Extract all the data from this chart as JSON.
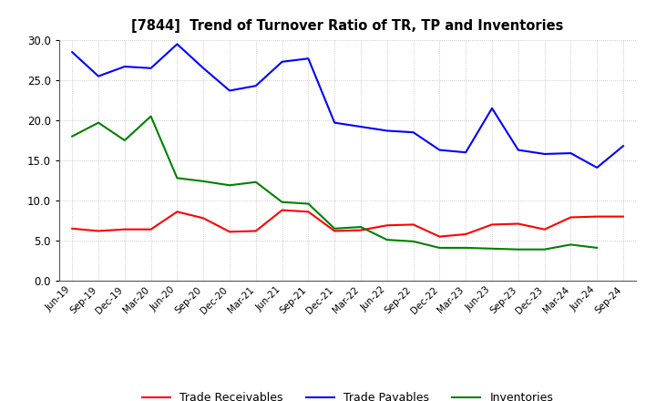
{
  "title": "[7844]  Trend of Turnover Ratio of TR, TP and Inventories",
  "x_labels": [
    "Jun-19",
    "Sep-19",
    "Dec-19",
    "Mar-20",
    "Jun-20",
    "Sep-20",
    "Dec-20",
    "Mar-21",
    "Jun-21",
    "Sep-21",
    "Dec-21",
    "Mar-22",
    "Jun-22",
    "Sep-22",
    "Dec-22",
    "Mar-23",
    "Jun-23",
    "Sep-23",
    "Dec-23",
    "Mar-24",
    "Jun-24",
    "Sep-24"
  ],
  "trade_receivables": [
    6.5,
    6.2,
    6.4,
    6.4,
    8.6,
    7.8,
    6.1,
    6.2,
    8.8,
    8.6,
    6.2,
    6.3,
    6.9,
    7.0,
    5.5,
    5.8,
    7.0,
    7.1,
    6.4,
    7.9,
    8.0,
    8.0
  ],
  "trade_payables": [
    28.5,
    25.5,
    26.7,
    26.5,
    29.5,
    26.5,
    23.7,
    24.3,
    27.3,
    27.7,
    19.7,
    19.2,
    18.7,
    18.5,
    16.3,
    16.0,
    21.5,
    16.3,
    15.8,
    15.9,
    14.1,
    16.8
  ],
  "inventories": [
    18.0,
    19.7,
    17.5,
    20.5,
    12.8,
    12.4,
    11.9,
    12.3,
    9.8,
    9.6,
    6.5,
    6.7,
    5.1,
    4.9,
    4.1,
    4.1,
    4.0,
    3.9,
    3.9,
    4.5,
    4.1,
    null
  ],
  "tr_color": "#ff0000",
  "tp_color": "#0000ff",
  "inv_color": "#008000",
  "ylim": [
    0.0,
    30.0
  ],
  "yticks": [
    0.0,
    5.0,
    10.0,
    15.0,
    20.0,
    25.0,
    30.0
  ],
  "legend_labels": [
    "Trade Receivables",
    "Trade Payables",
    "Inventories"
  ],
  "background_color": "#ffffff",
  "grid_color": "#bbbbbb"
}
